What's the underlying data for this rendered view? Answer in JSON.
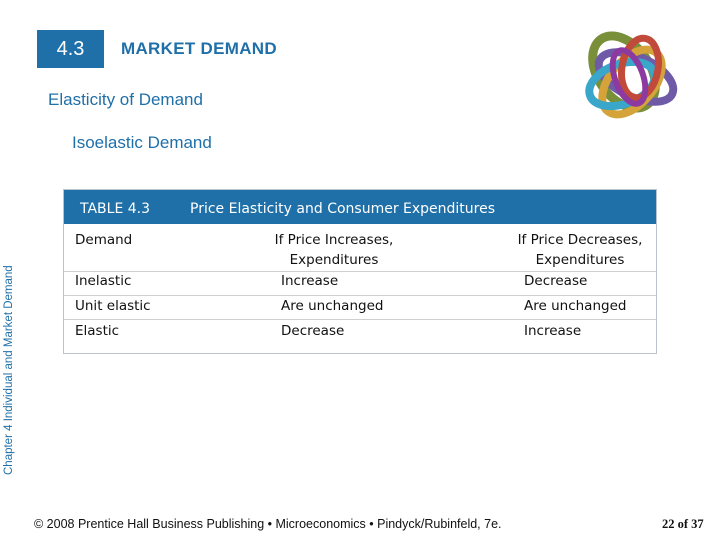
{
  "header": {
    "section_number": "4.3",
    "section_title": "MARKET DEMAND"
  },
  "subtitle": "Elasticity of Demand",
  "topic": "Isoelastic Demand",
  "sidebar": {
    "chapter_label": "Chapter 4 Individual and Market Demand"
  },
  "table": {
    "number": "TABLE 4.3",
    "caption": "Price Elasticity and Consumer Expenditures",
    "columns": [
      "Demand",
      [
        "If Price Increases,",
        "Expenditures"
      ],
      [
        "If Price Decreases,",
        "Expenditures"
      ]
    ],
    "rows": [
      [
        "Inelastic",
        "Increase",
        "Decrease"
      ],
      [
        "Unit elastic",
        "Are unchanged",
        "Are unchanged"
      ],
      [
        "Elastic",
        "Decrease",
        "Increase"
      ]
    ]
  },
  "footer": {
    "copyright": "© 2008 Prentice Hall Business Publishing  •  Microeconomics  •  Pindyck/Rubinfeld, 7e.",
    "page_number": "22 of 37"
  },
  "colors": {
    "accent": "#1f6fa8"
  },
  "icons": {
    "logo": "interlocking-rings-icon"
  }
}
